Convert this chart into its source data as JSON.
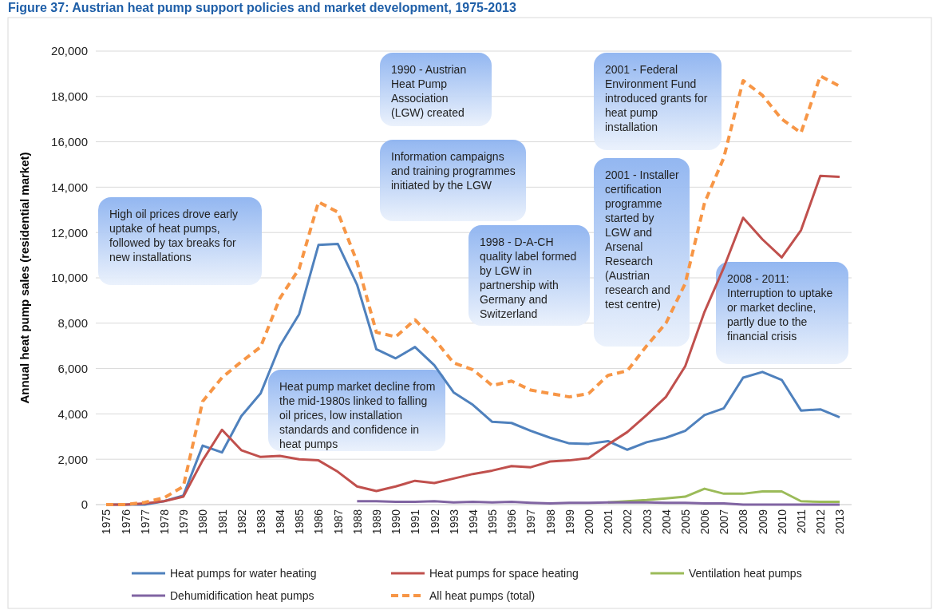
{
  "chart_data": {
    "type": "line",
    "title": "Figure 37: Austrian heat pump support policies and market development, 1975-2013",
    "ylabel": "Annual heat pump sales (residential market)",
    "categories": [
      "1975",
      "1976",
      "1977",
      "1978",
      "1979",
      "1980",
      "1981",
      "1982",
      "1983",
      "1984",
      "1985",
      "1986",
      "1987",
      "1988",
      "1989",
      "1990",
      "1991",
      "1992",
      "1993",
      "1994",
      "1995",
      "1996",
      "1997",
      "1998",
      "1999",
      "2000",
      "2001",
      "2002",
      "2003",
      "2004",
      "2005",
      "2006",
      "2007",
      "2008",
      "2009",
      "2010",
      "2011",
      "2012",
      "2013"
    ],
    "ylim": [
      0,
      20000
    ],
    "yticks": [
      {
        "value": 0,
        "label": "0"
      },
      {
        "value": 2000,
        "label": "2,000"
      },
      {
        "value": 4000,
        "label": "4,000"
      },
      {
        "value": 6000,
        "label": "6,000"
      },
      {
        "value": 8000,
        "label": "8,000"
      },
      {
        "value": 10000,
        "label": "10,000"
      },
      {
        "value": 12000,
        "label": "12,000"
      },
      {
        "value": 14000,
        "label": "14,000"
      },
      {
        "value": 16000,
        "label": "16,000"
      },
      {
        "value": 18000,
        "label": "18,000"
      },
      {
        "value": 20000,
        "label": "20,000"
      }
    ],
    "grid": "y",
    "legend": "bottom",
    "marker": "none",
    "series": [
      {
        "name": "Heat pumps for water heating",
        "color": "#4f81bd",
        "values": [
          0,
          0,
          0,
          150,
          400,
          2600,
          2300,
          3900,
          4900,
          7000,
          8400,
          11450,
          11500,
          9700,
          6850,
          6450,
          6950,
          6150,
          4950,
          4400,
          3650,
          3600,
          3250,
          2950,
          2700,
          2680,
          2800,
          2420,
          2750,
          2950,
          3250,
          3950,
          4250,
          5600,
          5850,
          5500,
          4150,
          4200,
          3850
        ]
      },
      {
        "name": "Heat pumps for space heating",
        "color": "#c0504d",
        "values": [
          0,
          0,
          50,
          150,
          350,
          1950,
          3300,
          2400,
          2100,
          2150,
          2000,
          1950,
          1450,
          800,
          600,
          800,
          1050,
          950,
          1150,
          1350,
          1500,
          1700,
          1650,
          1900,
          1950,
          2050,
          2650,
          3200,
          3950,
          4750,
          6100,
          8500,
          10450,
          12650,
          11700,
          10900,
          12100,
          14500,
          14450
        ]
      },
      {
        "name": "Ventilation heat pumps",
        "color": "#9bbb59",
        "values": [
          null,
          null,
          null,
          null,
          null,
          null,
          null,
          null,
          null,
          null,
          null,
          null,
          null,
          null,
          null,
          null,
          null,
          null,
          null,
          null,
          null,
          null,
          null,
          null,
          null,
          null,
          100,
          150,
          200,
          270,
          350,
          700,
          480,
          480,
          580,
          580,
          150,
          120,
          120
        ]
      },
      {
        "name": "Dehumidification heat pumps",
        "color": "#8064a2",
        "values": [
          null,
          null,
          null,
          null,
          null,
          null,
          null,
          null,
          null,
          null,
          null,
          null,
          null,
          150,
          150,
          120,
          120,
          150,
          100,
          120,
          100,
          120,
          80,
          50,
          80,
          80,
          100,
          100,
          100,
          80,
          80,
          50,
          50,
          0,
          0,
          0,
          0,
          0,
          0
        ]
      },
      {
        "name": "All heat pumps (total)",
        "color": "#f79646",
        "line_style": "dashed",
        "values": [
          0,
          0,
          100,
          300,
          800,
          4550,
          5600,
          6300,
          6950,
          9100,
          10400,
          13350,
          12900,
          10700,
          7600,
          7400,
          8150,
          7300,
          6250,
          5950,
          5250,
          5450,
          5050,
          4900,
          4750,
          4900,
          5700,
          5900,
          7000,
          8000,
          9750,
          13300,
          15300,
          18700,
          18050,
          17000,
          16400,
          18900,
          18450
        ]
      }
    ],
    "annotations": [
      "High oil prices drove early uptake of heat pumps, followed by tax breaks for new installations",
      "Heat pump market decline from the mid-1980s linked to falling oil prices, low installation standards and confidence in heat pumps",
      "1990 - Austrian Heat Pump Association (LGW) created",
      "Information campaigns and training programmes initiated by the LGW",
      "1998 - D-A-CH quality label formed by LGW in partnership with Germany and Switzerland",
      "2001 - Federal Environment Fund introduced grants for heat pump installation",
      "2001 - Installer certification programme started by LGW and Arsenal Research (Austrian research and test centre)",
      "2008 - 2011: Interruption to uptake or market decline, partly due to the financial crisis"
    ]
  }
}
